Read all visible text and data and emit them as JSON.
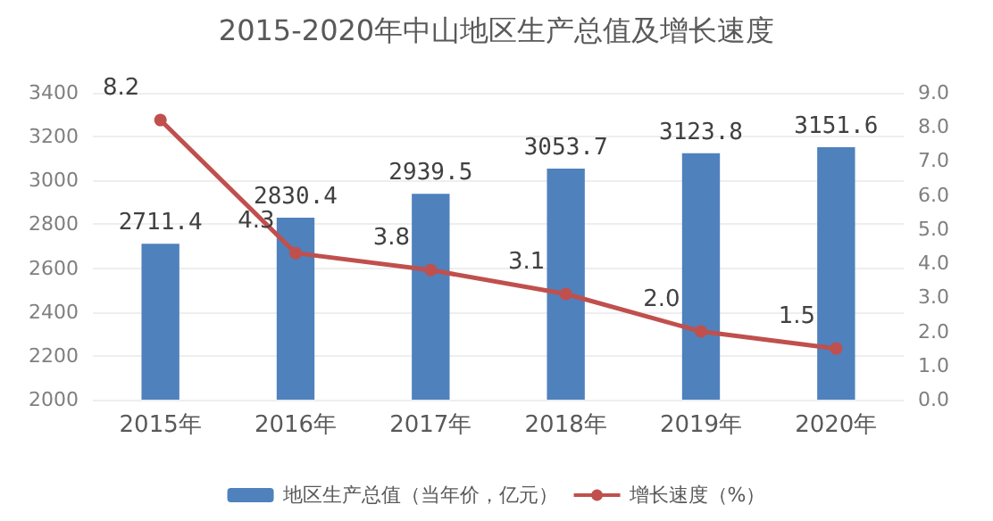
{
  "chart_data": {
    "type": "bar",
    "title": "2015-2020年中山地区生产总值及增长速度",
    "categories": [
      "2015年",
      "2016年",
      "2017年",
      "2018年",
      "2019年",
      "2020年"
    ],
    "series": [
      {
        "name": "地区生产总值（当年价，亿元）",
        "color": "#4f81bd",
        "values": [
          2711.4,
          2830.4,
          2939.5,
          3053.7,
          3123.8,
          3151.6
        ]
      },
      {
        "name": "增长速度（%）",
        "type": "line",
        "axis": "y2",
        "color": "#c0504d",
        "values": [
          8.2,
          4.3,
          3.8,
          3.1,
          2.0,
          1.5
        ],
        "value_labels": [
          "8.2",
          "4.3",
          "3.8",
          "3.1",
          "2.0",
          "1.5"
        ]
      }
    ],
    "ylim": [
      2000,
      3400
    ],
    "yticks": [
      2000,
      2200,
      2400,
      2600,
      2800,
      3000,
      3200,
      3400
    ],
    "y2lim": [
      0,
      9
    ],
    "y2ticks": [
      {
        "value": 0,
        "label": "0.0"
      },
      {
        "value": 1,
        "label": "1.0"
      },
      {
        "value": 2,
        "label": "2.0"
      },
      {
        "value": 3,
        "label": "3.0"
      },
      {
        "value": 4,
        "label": "4.0"
      },
      {
        "value": 5,
        "label": "5.0"
      },
      {
        "value": 6,
        "label": "6.0"
      },
      {
        "value": 7,
        "label": "7.0"
      },
      {
        "value": 8,
        "label": "8.0"
      },
      {
        "value": 9,
        "label": "9.0"
      }
    ],
    "data_labels": true,
    "grid": "y",
    "legend": "bottom",
    "marker": "circle"
  }
}
